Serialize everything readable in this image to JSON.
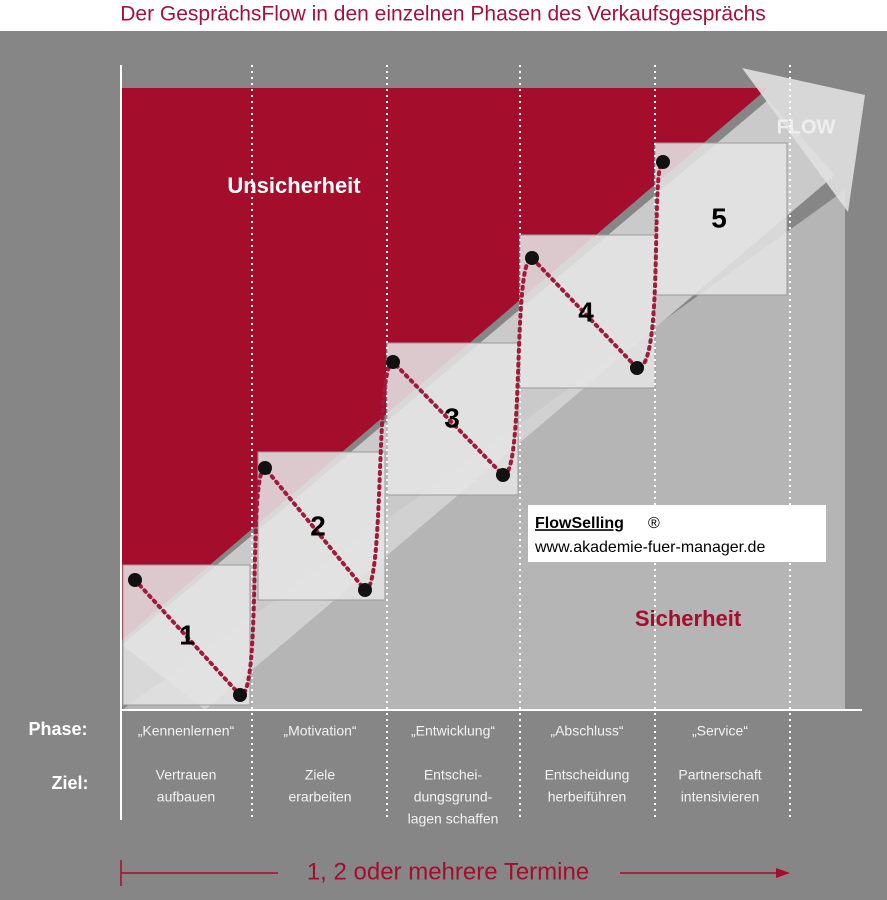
{
  "title": "Der GesprächsFlow in den einzelnen Phasen des Verkaufsgesprächs",
  "labels": {
    "uncertainty": "Unsicherheit",
    "certainty": "Sicherheit",
    "flow": "FLOW"
  },
  "steps": [
    "1",
    "2",
    "3",
    "4",
    "5"
  ],
  "row_labels": {
    "phase": "Phase:",
    "goal": "Ziel:"
  },
  "phases": [
    {
      "phase": "„Kennenlernen“",
      "goal": [
        "Vertrauen",
        "aufbauen"
      ]
    },
    {
      "phase": "„Motivation“",
      "goal": [
        "Ziele",
        "erarbeiten"
      ]
    },
    {
      "phase": "„Entwicklung“",
      "goal": [
        "Entschei-",
        "dungsgrund-",
        "lagen schaffen"
      ]
    },
    {
      "phase": "„Abschluss“",
      "goal": [
        "Entscheidung",
        "herbeiführen"
      ]
    },
    {
      "phase": "„Service“",
      "goal": [
        "Partnerschaft",
        "intensivieren"
      ]
    }
  ],
  "watermark": {
    "brand": "FlowSelling",
    "mark": "®",
    "url": "www.akademie-fuer-manager.de"
  },
  "footer": "1, 2 oder mehrere Termine"
}
